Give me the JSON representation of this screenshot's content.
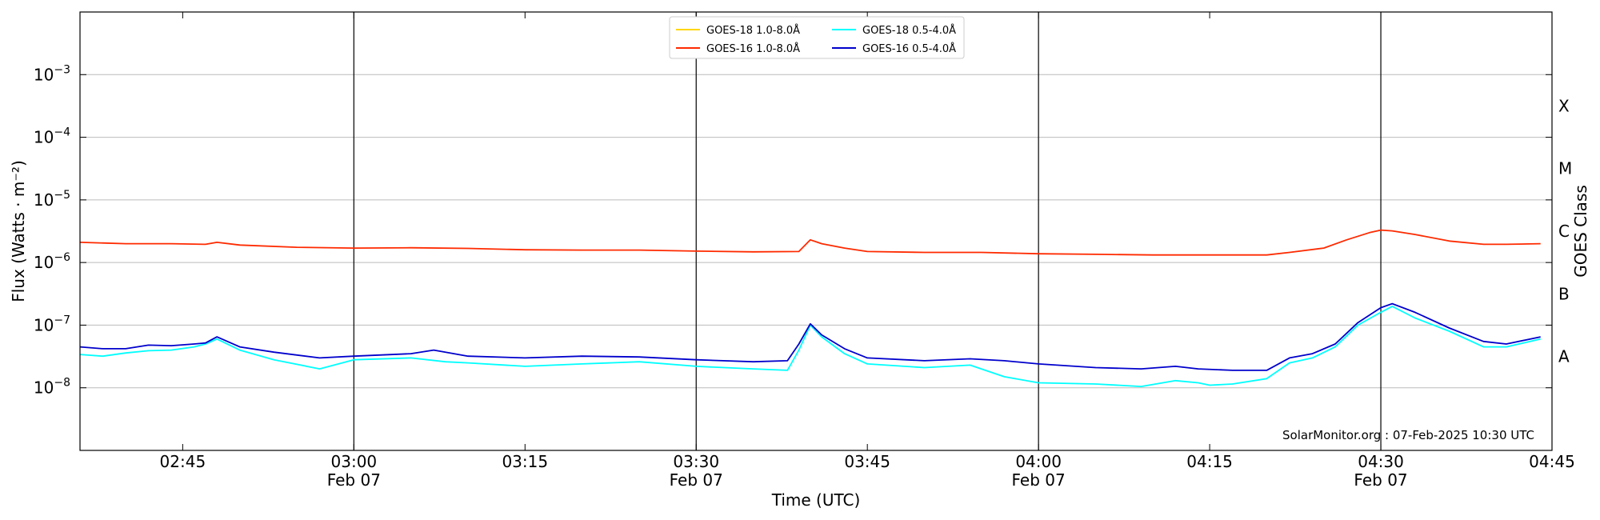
{
  "chart_data": {
    "type": "line",
    "xlabel": "Time (UTC)",
    "ylabel": "Flux (Watts · m⁻²)",
    "ylabel_right": "GOES Class",
    "yscale": "log",
    "xlim": [
      "02:36",
      "04:45"
    ],
    "ylim": [
      1e-09,
      0.01
    ],
    "y_ticks": [
      {
        "value": 1e-08,
        "mant": "10",
        "exp": "−8"
      },
      {
        "value": 1e-07,
        "mant": "10",
        "exp": "−7"
      },
      {
        "value": 1e-06,
        "mant": "10",
        "exp": "−6"
      },
      {
        "value": 1e-05,
        "mant": "10",
        "exp": "−5"
      },
      {
        "value": 0.0001,
        "mant": "10",
        "exp": "−4"
      },
      {
        "value": 0.001,
        "mant": "10",
        "exp": "−3"
      }
    ],
    "x_ticks": [
      {
        "time": "02:45",
        "label": "02:45",
        "date": ""
      },
      {
        "time": "03:00",
        "label": "03:00",
        "date": "Feb 07"
      },
      {
        "time": "03:15",
        "label": "03:15",
        "date": ""
      },
      {
        "time": "03:30",
        "label": "03:30",
        "date": "Feb 07"
      },
      {
        "time": "03:45",
        "label": "03:45",
        "date": ""
      },
      {
        "time": "04:00",
        "label": "04:00",
        "date": "Feb 07"
      },
      {
        "time": "04:15",
        "label": "04:15",
        "date": ""
      },
      {
        "time": "04:30",
        "label": "04:30",
        "date": "Feb 07"
      },
      {
        "time": "04:45",
        "label": "04:45",
        "date": ""
      }
    ],
    "day_lines": [
      "03:00",
      "03:30",
      "04:00",
      "04:30"
    ],
    "goes_classes": [
      {
        "label": "A",
        "value": 3.16e-08
      },
      {
        "label": "B",
        "value": 3.16e-07
      },
      {
        "label": "C",
        "value": 3.16e-06
      },
      {
        "label": "M",
        "value": 3.16e-05
      },
      {
        "label": "X",
        "value": 0.000316
      }
    ],
    "grid": "horizontal",
    "legend_position": "top-center",
    "series": [
      {
        "name": "GOES-18 1.0-8.0Å",
        "color": "#ffd700",
        "x": [],
        "y": []
      },
      {
        "name": "GOES-16 1.0-8.0Å",
        "color": "#ff2a00",
        "x": [
          "02:36",
          "02:40",
          "02:44",
          "02:47",
          "02:48",
          "02:50",
          "02:55",
          "03:00",
          "03:05",
          "03:10",
          "03:15",
          "03:20",
          "03:25",
          "03:30",
          "03:35",
          "03:39",
          "03:40",
          "03:41",
          "03:43",
          "03:45",
          "03:50",
          "03:55",
          "04:00",
          "04:05",
          "04:10",
          "04:15",
          "04:20",
          "04:22",
          "04:25",
          "04:27",
          "04:29",
          "04:30",
          "04:31",
          "04:33",
          "04:36",
          "04:39",
          "04:41",
          "04:44"
        ],
        "y": [
          2.1e-06,
          2e-06,
          2e-06,
          1.95e-06,
          2.1e-06,
          1.9e-06,
          1.75e-06,
          1.7e-06,
          1.72e-06,
          1.68e-06,
          1.6e-06,
          1.58e-06,
          1.58e-06,
          1.52e-06,
          1.48e-06,
          1.5e-06,
          2.3e-06,
          2e-06,
          1.7e-06,
          1.5e-06,
          1.45e-06,
          1.45e-06,
          1.38e-06,
          1.35e-06,
          1.32e-06,
          1.32e-06,
          1.32e-06,
          1.45e-06,
          1.7e-06,
          2.3e-06,
          3e-06,
          3.3e-06,
          3.2e-06,
          2.8e-06,
          2.2e-06,
          1.95e-06,
          1.95e-06,
          2e-06
        ]
      },
      {
        "name": "GOES-18 0.5-4.0Å",
        "color": "#00ffff",
        "x": [
          "02:36",
          "02:38",
          "02:40",
          "02:42",
          "02:44",
          "02:46",
          "02:47",
          "02:48",
          "02:50",
          "02:53",
          "02:57",
          "03:00",
          "03:05",
          "03:08",
          "03:10",
          "03:15",
          "03:20",
          "03:25",
          "03:30",
          "03:35",
          "03:38",
          "03:39",
          "03:40",
          "03:41",
          "03:43",
          "03:45",
          "03:50",
          "03:54",
          "03:57",
          "04:00",
          "04:05",
          "04:09",
          "04:12",
          "04:14",
          "04:15",
          "04:17",
          "04:20",
          "04:22",
          "04:24",
          "04:26",
          "04:28",
          "04:30",
          "04:31",
          "04:33",
          "04:36",
          "04:39",
          "04:41",
          "04:44"
        ],
        "y": [
          3.4e-08,
          3.2e-08,
          3.6e-08,
          3.9e-08,
          4e-08,
          4.5e-08,
          5e-08,
          6e-08,
          4e-08,
          2.8e-08,
          2e-08,
          2.8e-08,
          3e-08,
          2.6e-08,
          2.5e-08,
          2.2e-08,
          2.4e-08,
          2.6e-08,
          2.2e-08,
          2e-08,
          1.9e-08,
          4e-08,
          1e-07,
          6.5e-08,
          3.5e-08,
          2.4e-08,
          2.1e-08,
          2.3e-08,
          1.5e-08,
          1.2e-08,
          1.15e-08,
          1.05e-08,
          1.3e-08,
          1.2e-08,
          1.1e-08,
          1.15e-08,
          1.4e-08,
          2.5e-08,
          3e-08,
          4.5e-08,
          1e-07,
          1.6e-07,
          2e-07,
          1.3e-07,
          8e-08,
          4.5e-08,
          4.5e-08,
          6e-08
        ]
      },
      {
        "name": "GOES-16 0.5-4.0Å",
        "color": "#0000cc",
        "x": [
          "02:36",
          "02:38",
          "02:40",
          "02:42",
          "02:44",
          "02:46",
          "02:47",
          "02:48",
          "02:50",
          "02:53",
          "02:57",
          "03:00",
          "03:05",
          "03:07",
          "03:10",
          "03:15",
          "03:20",
          "03:25",
          "03:30",
          "03:35",
          "03:38",
          "03:39",
          "03:40",
          "03:41",
          "03:43",
          "03:45",
          "03:50",
          "03:54",
          "03:57",
          "04:00",
          "04:05",
          "04:09",
          "04:12",
          "04:14",
          "04:17",
          "04:20",
          "04:22",
          "04:24",
          "04:26",
          "04:28",
          "04:30",
          "04:31",
          "04:33",
          "04:36",
          "04:39",
          "04:41",
          "04:44"
        ],
        "y": [
          4.5e-08,
          4.2e-08,
          4.2e-08,
          4.8e-08,
          4.7e-08,
          5e-08,
          5.2e-08,
          6.5e-08,
          4.5e-08,
          3.7e-08,
          3e-08,
          3.2e-08,
          3.5e-08,
          4e-08,
          3.2e-08,
          3e-08,
          3.2e-08,
          3.1e-08,
          2.8e-08,
          2.6e-08,
          2.7e-08,
          5e-08,
          1.05e-07,
          7e-08,
          4.2e-08,
          3e-08,
          2.7e-08,
          2.9e-08,
          2.7e-08,
          2.4e-08,
          2.1e-08,
          2e-08,
          2.2e-08,
          2e-08,
          1.9e-08,
          1.9e-08,
          3e-08,
          3.5e-08,
          5e-08,
          1.1e-07,
          1.9e-07,
          2.2e-07,
          1.6e-07,
          9e-08,
          5.5e-08,
          5e-08,
          6.5e-08
        ]
      }
    ],
    "watermark": "SolarMonitor.org : 07-Feb-2025 10:30 UTC"
  }
}
